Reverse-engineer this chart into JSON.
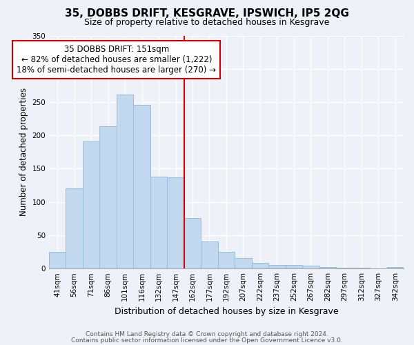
{
  "title": "35, DOBBS DRIFT, KESGRAVE, IPSWICH, IP5 2QG",
  "subtitle": "Size of property relative to detached houses in Kesgrave",
  "xlabel": "Distribution of detached houses by size in Kesgrave",
  "ylabel": "Number of detached properties",
  "bar_labels": [
    "41sqm",
    "56sqm",
    "71sqm",
    "86sqm",
    "101sqm",
    "116sqm",
    "132sqm",
    "147sqm",
    "162sqm",
    "177sqm",
    "192sqm",
    "207sqm",
    "222sqm",
    "237sqm",
    "252sqm",
    "267sqm",
    "282sqm",
    "297sqm",
    "312sqm",
    "327sqm",
    "342sqm"
  ],
  "bar_values": [
    25,
    120,
    191,
    214,
    261,
    246,
    138,
    137,
    76,
    41,
    25,
    16,
    8,
    5,
    5,
    4,
    2,
    1,
    1,
    0,
    2
  ],
  "bar_color": "#c2d8ee",
  "bar_edge_color": "#9bbcda",
  "vline_x": 7.5,
  "vline_color": "#cc0000",
  "annotation_title": "35 DOBBS DRIFT: 151sqm",
  "annotation_line1": "← 82% of detached houses are smaller (1,222)",
  "annotation_line2": "18% of semi-detached houses are larger (270) →",
  "annotation_box_facecolor": "#ffffff",
  "annotation_box_edgecolor": "#cc0000",
  "ylim": [
    0,
    350
  ],
  "yticks": [
    0,
    50,
    100,
    150,
    200,
    250,
    300,
    350
  ],
  "footer1": "Contains HM Land Registry data © Crown copyright and database right 2024.",
  "footer2": "Contains public sector information licensed under the Open Government Licence v3.0.",
  "bg_color": "#eef1f7",
  "grid_color": "#ffffff",
  "title_fontsize": 11,
  "subtitle_fontsize": 9,
  "ylabel_fontsize": 8.5,
  "xlabel_fontsize": 9,
  "tick_fontsize": 7.5,
  "footer_fontsize": 6.5,
  "annotation_fontsize": 8.5
}
